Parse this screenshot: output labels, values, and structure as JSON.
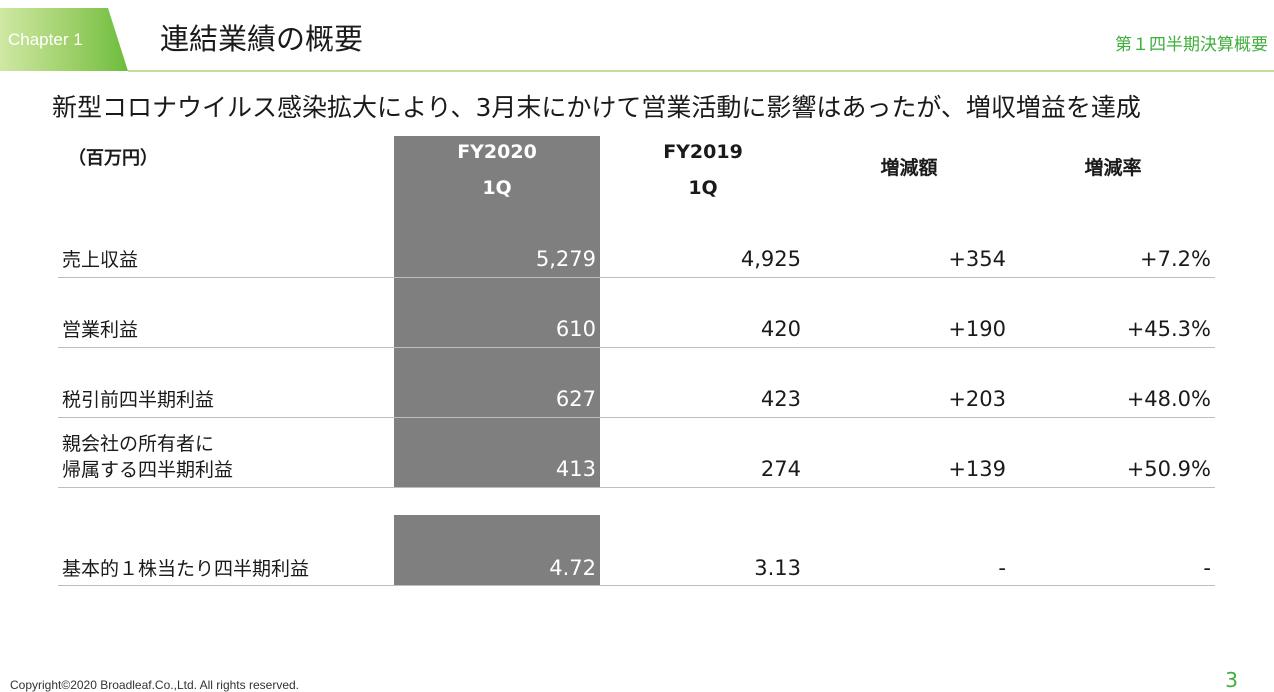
{
  "header": {
    "chapter": "Chapter 1",
    "title": "連結業績の概要",
    "section": "第１四半期決算概要"
  },
  "headline": "新型コロナウイルス感染拡大により、3月末にかけて営業活動に影響はあったが、増収増益を達成",
  "table": {
    "unit": "（百万円）",
    "columns": [
      {
        "line1": "FY2020",
        "line2": "1Q"
      },
      {
        "line1": "FY2019",
        "line2": "1Q"
      },
      {
        "line1": "増減額",
        "line2": ""
      },
      {
        "line1": "増減率",
        "line2": ""
      }
    ],
    "rows": [
      {
        "label1": "売上収益",
        "label2": "",
        "values": [
          "5,279",
          "4,925",
          "+354",
          "+7.2%"
        ]
      },
      {
        "label1": "営業利益",
        "label2": "",
        "values": [
          "610",
          "420",
          "+190",
          "+45.3%"
        ]
      },
      {
        "label1": "税引前四半期利益",
        "label2": "",
        "values": [
          "627",
          "423",
          "+203",
          "+48.0%"
        ]
      },
      {
        "label1": "親会社の所有者に",
        "label2": "帰属する四半期利益",
        "values": [
          "413",
          "274",
          "+139",
          "+50.9%"
        ]
      },
      {
        "label1": "基本的１株当たり四半期利益",
        "label2": "",
        "values": [
          "4.72",
          "3.13",
          "-",
          "-"
        ]
      }
    ]
  },
  "footer": {
    "copyright": "Copyright©2020 Broadleaf.Co.,Ltd. All rights reserved.",
    "page_number": "3"
  }
}
